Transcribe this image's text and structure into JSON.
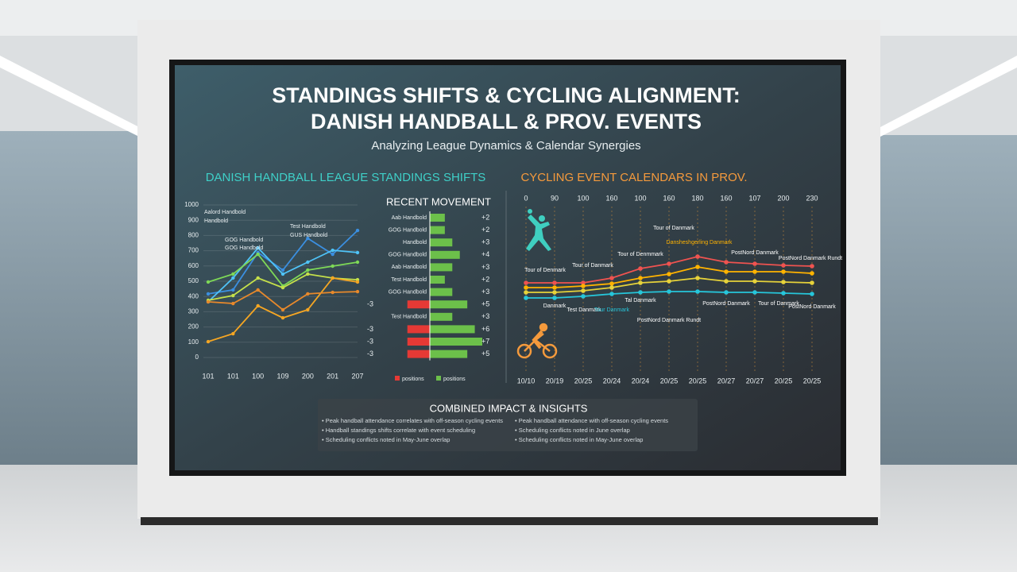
{
  "header": {
    "title_lines": [
      "STANDINGS SHIFTS & CYCLING ALIGNMENT:",
      "DANISH HANDBALL & PROV. EVENTS"
    ],
    "subtitle": "Analyzing League Dynamics & Calendar Synergies"
  },
  "chart_data": [
    {
      "type": "line",
      "title": "DANISH HANDBALL LEAGUE STANDINGS SHIFTS",
      "categories": [
        "101",
        "101",
        "100",
        "109",
        "200",
        "201",
        "207"
      ],
      "ylim": [
        0,
        1000
      ],
      "yticks": [
        0,
        100,
        200,
        300,
        400,
        500,
        600,
        700,
        800,
        900,
        1000
      ],
      "grid": true,
      "series": [
        {
          "name": "Aalord Handbold",
          "color": "#3b8fe0",
          "values": [
            417,
            443,
            688,
            573,
            781,
            677,
            833
          ]
        },
        {
          "name": "Handbold",
          "color": "#4fc3f7",
          "values": [
            365,
            521,
            719,
            547,
            625,
            703,
            688
          ]
        },
        {
          "name": "Test Handbold",
          "color": "#7ed957",
          "values": [
            495,
            547,
            677,
            469,
            573,
            599,
            625
          ]
        },
        {
          "name": "GUS Handbold",
          "color": "#c5e04a",
          "values": [
            375,
            406,
            521,
            458,
            547,
            521,
            510
          ]
        },
        {
          "name": "GOG Handbold",
          "color": "#f5a623",
          "values": [
            104,
            156,
            339,
            260,
            313,
            521,
            495
          ]
        },
        {
          "name": "GOG Handbold",
          "color": "#e8892b",
          "values": [
            365,
            354,
            443,
            313,
            417,
            427,
            432
          ]
        }
      ]
    },
    {
      "type": "hbar",
      "title": "RECENT MOVEMENT",
      "categories": [
        "Aab Handbold",
        "GOG Handbold",
        "Handbold",
        "GOG Handbold",
        "Aab Handbold",
        "Test Handbold",
        "GOG Handbold",
        null,
        "Test Handbold",
        null,
        null,
        null
      ],
      "xlim": [
        -7,
        7
      ],
      "series": [
        {
          "name": "positions",
          "color": "#e53935",
          "values": [
            null,
            null,
            null,
            null,
            null,
            null,
            null,
            -3,
            null,
            -3,
            -3,
            -3
          ]
        },
        {
          "name": "positions",
          "color": "#6cc04a",
          "values": [
            2,
            2,
            3,
            4,
            3,
            2,
            3,
            5,
            3,
            6,
            7,
            5
          ],
          "value_labels": [
            "+2",
            "+2",
            "+3",
            "+4",
            "+3",
            "+2",
            "+3",
            "+5",
            "+3",
            "+6",
            "+7",
            "+5"
          ]
        }
      ]
    },
    {
      "type": "line",
      "title": "CYCLING EVENT CALENDARS IN PROV.",
      "top_labels": [
        "0",
        "90",
        "100",
        "160",
        "100",
        "160",
        "180",
        "160",
        "107",
        "200",
        "230"
      ],
      "categories": [
        "10/10",
        "20/19",
        "20/25",
        "20/24",
        "20/24",
        "20/25",
        "20/25",
        "20/27",
        "20/27",
        "20/25",
        "20/25"
      ],
      "ylim": [
        0,
        100
      ],
      "series": [
        {
          "color": "#ef5350",
          "values": [
            44,
            44,
            44,
            50,
            62,
            68,
            77,
            70,
            68,
            66,
            65
          ]
        },
        {
          "color": "#ffb300",
          "values": [
            38,
            38,
            40,
            43,
            50,
            55,
            64,
            58,
            58,
            58,
            56
          ]
        },
        {
          "color": "#e6d23a",
          "values": [
            32,
            32,
            34,
            38,
            44,
            46,
            50,
            46,
            46,
            45,
            44
          ]
        },
        {
          "color": "#26c6da",
          "values": [
            25,
            25,
            27,
            30,
            32,
            33,
            33,
            32,
            32,
            31,
            30
          ]
        }
      ],
      "annotations": [
        "Tour of Denmark",
        "Tour of Danmark",
        "Tour of Denmmark",
        "Tour of Danmark",
        "Dansheshgerling Danmark",
        "PostNord Danmark",
        "PostNord Danmark Rundt",
        "Danmark",
        "Test Danmark",
        "Tour Danmark",
        "Tal Danmark",
        "PostNord Danmark Rundt",
        "PostNord Danmark",
        "Tour of Danmark",
        "PostNord Danmark"
      ]
    }
  ],
  "insights": {
    "title": "COMBINED IMPACT & INSIGHTS",
    "left": [
      "• Peak handball attendance correlates with off-season cycling events",
      "• Handball standings shifts correlate with event scheduling",
      "• Scheduling conflicts noted in May-June overlap"
    ],
    "right": [
      "• Peak handball attendance with off-season cycling events",
      "• Scheduling conflicts noted in June overlap",
      "• Scheduling conflicts noted in May-June overlap"
    ]
  }
}
